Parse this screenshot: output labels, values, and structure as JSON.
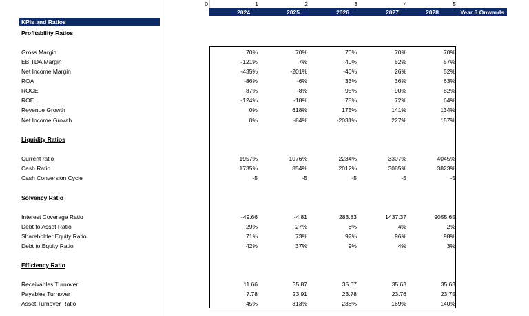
{
  "column_indices": [
    "0",
    "1",
    "2",
    "3",
    "4",
    "5"
  ],
  "years": [
    "2024",
    "2025",
    "2026",
    "2027",
    "2028",
    "Year 6 Onwards"
  ],
  "title": "KPIs and Ratios",
  "sections": [
    {
      "name": "Profitability Ratios",
      "rows": [
        {
          "label": "Gross Margin",
          "values": [
            "70%",
            "70%",
            "70%",
            "70%",
            "70%"
          ]
        },
        {
          "label": "EBITDA Margin",
          "values": [
            "-121%",
            "7%",
            "40%",
            "52%",
            "57%"
          ]
        },
        {
          "label": "Net Income Margin",
          "values": [
            "-435%",
            "-201%",
            "-40%",
            "26%",
            "52%"
          ]
        },
        {
          "label": "ROA",
          "values": [
            "-86%",
            "-6%",
            "33%",
            "36%",
            "63%"
          ]
        },
        {
          "label": "ROCE",
          "values": [
            "-87%",
            "-8%",
            "95%",
            "90%",
            "82%"
          ]
        },
        {
          "label": "ROE",
          "values": [
            "-124%",
            "-18%",
            "78%",
            "72%",
            "64%"
          ]
        },
        {
          "label": "Revenue Growth",
          "values": [
            "0%",
            "618%",
            "175%",
            "141%",
            "134%"
          ]
        },
        {
          "label": "Net Income Growth",
          "values": [
            "0%",
            "-84%",
            "-2031%",
            "227%",
            "157%"
          ]
        }
      ]
    },
    {
      "name": "Liquidity Ratios",
      "rows": [
        {
          "label": "Current ratio",
          "values": [
            "1957%",
            "1076%",
            "2234%",
            "3307%",
            "4045%"
          ]
        },
        {
          "label": "Cash Ratio",
          "values": [
            "1735%",
            "854%",
            "2012%",
            "3085%",
            "3823%"
          ]
        },
        {
          "label": "Cash Conversion Cycle",
          "values": [
            "-5",
            "-5",
            "-5",
            "-5",
            "-5"
          ]
        }
      ]
    },
    {
      "name": "Solvency Ratio",
      "rows": [
        {
          "label": "Interest Coverage Ratio",
          "values": [
            "-49.66",
            "-4.81",
            "283.83",
            "1437.37",
            "9055.65"
          ]
        },
        {
          "label": "Debt to Asset Ratio",
          "values": [
            "29%",
            "27%",
            "8%",
            "4%",
            "2%"
          ]
        },
        {
          "label": "Shareholder Equity Ratio",
          "values": [
            "71%",
            "73%",
            "92%",
            "96%",
            "98%"
          ]
        },
        {
          "label": "Debt to Equity Ratio",
          "values": [
            "42%",
            "37%",
            "9%",
            "4%",
            "3%"
          ]
        }
      ]
    },
    {
      "name": "Efficiency Ratio",
      "rows": [
        {
          "label": "Receivables Turnover",
          "values": [
            "11.66",
            "35.87",
            "35.67",
            "35.63",
            "35.63"
          ]
        },
        {
          "label": "Payables Turnover",
          "values": [
            "7.78",
            "23.91",
            "23.78",
            "23.76",
            "23.75"
          ]
        },
        {
          "label": "Asset Turnover Ratio",
          "values": [
            "45%",
            "313%",
            "238%",
            "169%",
            "140%"
          ]
        }
      ]
    }
  ],
  "colors": {
    "header_bg": "#0d2a66",
    "header_text": "#ffffff",
    "border": "#000000",
    "gridline": "#d0d0d0"
  }
}
